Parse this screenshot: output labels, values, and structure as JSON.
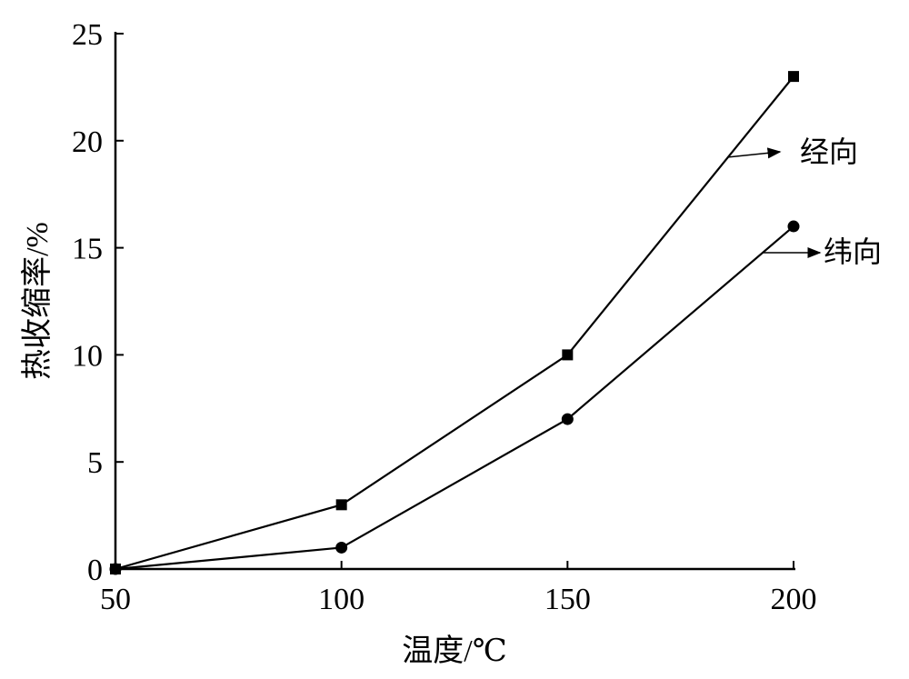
{
  "chart_data": {
    "type": "line",
    "title": "",
    "xlabel": "温度/℃",
    "ylabel": "热收缩率/%",
    "xlim": [
      50,
      200
    ],
    "ylim": [
      0,
      25
    ],
    "x_ticks": [
      50,
      100,
      150,
      200
    ],
    "y_ticks": [
      0,
      5,
      10,
      15,
      20,
      25
    ],
    "grid": false,
    "legend": "annotations with arrows at right end of lines",
    "x": [
      50,
      100,
      150,
      200
    ],
    "series": [
      {
        "name": "经向",
        "marker": "square",
        "values": [
          0,
          3,
          10,
          23
        ]
      },
      {
        "name": "纬向",
        "marker": "circle",
        "values": [
          0,
          1,
          7,
          16
        ]
      }
    ],
    "colors": {
      "line": "#000000"
    }
  }
}
